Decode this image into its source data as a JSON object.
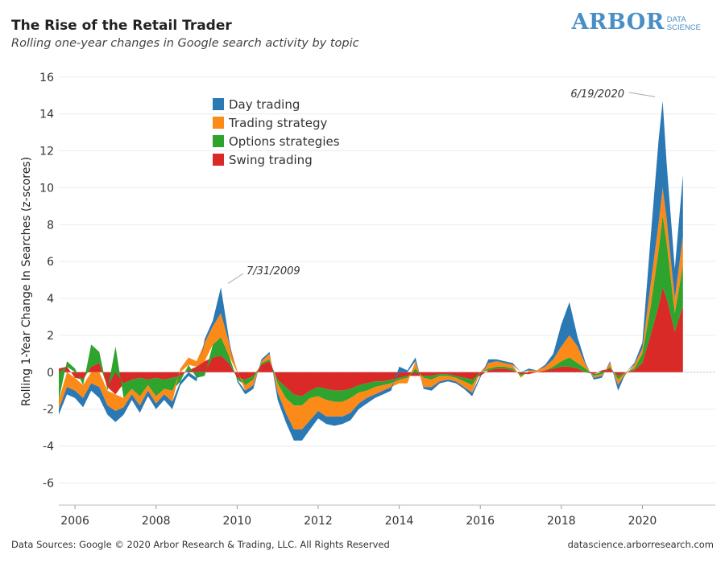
{
  "header": {
    "title": "The Rise of the Retail Trader",
    "subtitle": "Rolling one-year changes in Google search activity by topic",
    "logo_word": "ARBOR",
    "logo_sub_1": "DATA",
    "logo_sub_2": "SCIENCE"
  },
  "footer": {
    "sources": "Data Sources: Google © 2020 Arbor Research & Trading, LLC. All Rights Reserved",
    "website": "datascience.arborresearch.com"
  },
  "colors": {
    "day_trading": "#2a78b4",
    "trading_strategy": "#fb8a18",
    "options_strategies": "#2ea32e",
    "swing_trading": "#d92a27"
  },
  "chart_data": {
    "type": "area",
    "stacked": true,
    "xlabel": "",
    "ylabel": "Rolling 1-Year Change In Searches (z-scores)",
    "xlim": [
      2005.6,
      2021.8
    ],
    "ylim": [
      -7.2,
      16.6
    ],
    "yticks": [
      -6,
      -4,
      -2,
      0,
      2,
      4,
      6,
      8,
      10,
      12,
      14,
      16
    ],
    "xticks": [
      2006,
      2008,
      2010,
      2012,
      2014,
      2016,
      2018,
      2020
    ],
    "grid": true,
    "legend_position": "top-center",
    "annotations": [
      {
        "text": "7/31/2009",
        "x": 2009.58,
        "y": 4.6
      },
      {
        "text": "6/19/2020",
        "x": 2020.47,
        "y": 14.8
      }
    ],
    "x": [
      2005.6,
      2005.8,
      2006.0,
      2006.2,
      2006.4,
      2006.6,
      2006.8,
      2007.0,
      2007.2,
      2007.4,
      2007.6,
      2007.8,
      2008.0,
      2008.2,
      2008.4,
      2008.6,
      2008.8,
      2009.0,
      2009.2,
      2009.4,
      2009.6,
      2009.8,
      2010.0,
      2010.2,
      2010.4,
      2010.6,
      2010.8,
      2011.0,
      2011.2,
      2011.4,
      2011.6,
      2011.8,
      2012.0,
      2012.2,
      2012.4,
      2012.6,
      2012.8,
      2013.0,
      2013.2,
      2013.4,
      2013.6,
      2013.8,
      2014.0,
      2014.2,
      2014.4,
      2014.6,
      2014.8,
      2015.0,
      2015.2,
      2015.4,
      2015.6,
      2015.8,
      2016.0,
      2016.2,
      2016.4,
      2016.6,
      2016.8,
      2017.0,
      2017.2,
      2017.4,
      2017.6,
      2017.8,
      2018.0,
      2018.2,
      2018.4,
      2018.6,
      2018.8,
      2019.0,
      2019.2,
      2019.4,
      2019.6,
      2019.8,
      2020.0,
      2020.2,
      2020.4,
      2020.5,
      2020.6,
      2020.8,
      2021.0
    ],
    "series": [
      {
        "name": "Swing trading",
        "values": [
          0.2,
          0.3,
          -0.3,
          -0.4,
          0.3,
          0.5,
          -0.8,
          -1.2,
          -0.6,
          -0.4,
          -0.3,
          -0.4,
          -0.3,
          -0.4,
          -0.3,
          -0.2,
          0.1,
          0.3,
          0.6,
          0.8,
          0.9,
          0.5,
          -0.3,
          -0.4,
          -0.2,
          0.4,
          0.6,
          -0.4,
          -0.8,
          -1.2,
          -1.3,
          -1.0,
          -0.8,
          -0.9,
          -1.0,
          -1.0,
          -0.9,
          -0.7,
          -0.6,
          -0.5,
          -0.5,
          -0.4,
          -0.3,
          -0.2,
          -0.2,
          -0.2,
          -0.2,
          -0.1,
          -0.1,
          -0.2,
          -0.3,
          -0.4,
          -0.2,
          0.1,
          0.2,
          0.2,
          0.1,
          -0.1,
          -0.1,
          0.0,
          0.1,
          0.2,
          0.3,
          0.3,
          0.2,
          0.0,
          -0.1,
          0.1,
          0.2,
          -0.2,
          0.0,
          0.1,
          0.5,
          2.0,
          3.6,
          4.6,
          4.0,
          2.2,
          3.6
        ]
      },
      {
        "name": "Options strategies",
        "values": [
          -1.5,
          0.3,
          0.2,
          -0.3,
          1.2,
          0.6,
          -0.2,
          1.4,
          -0.8,
          -0.5,
          -1.0,
          -0.3,
          -1.0,
          -0.5,
          -0.7,
          -0.3,
          0.3,
          -0.3,
          -0.2,
          0.7,
          1.0,
          0.4,
          -0.1,
          -0.3,
          -0.2,
          0.1,
          0.1,
          -0.2,
          -0.6,
          -0.6,
          -0.5,
          -0.4,
          -0.5,
          -0.6,
          -0.6,
          -0.6,
          -0.5,
          -0.4,
          -0.4,
          -0.3,
          -0.2,
          -0.2,
          -0.1,
          -0.1,
          0.2,
          -0.1,
          -0.2,
          -0.1,
          -0.1,
          -0.1,
          -0.2,
          -0.3,
          0.0,
          0.1,
          0.1,
          0.1,
          0.1,
          -0.1,
          0.0,
          0.0,
          0.0,
          0.1,
          0.3,
          0.5,
          0.3,
          0.2,
          -0.1,
          -0.1,
          0.1,
          -0.2,
          0.0,
          0.1,
          0.5,
          1.5,
          3.0,
          3.9,
          3.0,
          1.0,
          2.2
        ]
      },
      {
        "name": "Trading strategy",
        "values": [
          -0.5,
          -0.8,
          -0.7,
          -0.7,
          -0.6,
          -0.8,
          -0.8,
          -0.9,
          -0.5,
          -0.3,
          -0.5,
          -0.3,
          -0.4,
          -0.3,
          -0.6,
          0.2,
          0.4,
          0.3,
          1.0,
          1.0,
          1.3,
          0.7,
          0.1,
          -0.3,
          -0.3,
          0.1,
          0.3,
          -0.5,
          -0.8,
          -1.3,
          -1.3,
          -1.2,
          -0.8,
          -0.9,
          -0.8,
          -0.8,
          -0.8,
          -0.6,
          -0.4,
          -0.4,
          -0.3,
          -0.2,
          -0.2,
          -0.3,
          0.4,
          -0.5,
          -0.4,
          -0.3,
          -0.2,
          -0.2,
          -0.3,
          -0.4,
          0.0,
          0.3,
          0.3,
          0.2,
          0.2,
          -0.1,
          0.1,
          0.1,
          0.2,
          0.4,
          0.8,
          1.2,
          0.9,
          0.2,
          -0.1,
          -0.1,
          0.2,
          -0.3,
          -0.1,
          0.2,
          0.3,
          1.2,
          1.5,
          1.5,
          1.3,
          0.8,
          1.6
        ]
      },
      {
        "name": "Day trading",
        "values": [
          -0.3,
          -0.4,
          -0.4,
          -0.5,
          -0.4,
          -0.6,
          -0.5,
          -0.6,
          -0.4,
          -0.3,
          -0.4,
          -0.3,
          -0.3,
          -0.3,
          -0.4,
          -0.2,
          -0.2,
          -0.2,
          0.2,
          0.3,
          1.4,
          0.2,
          -0.1,
          -0.2,
          -0.2,
          0.1,
          0.1,
          -0.4,
          -0.5,
          -0.6,
          -0.6,
          -0.5,
          -0.4,
          -0.4,
          -0.5,
          -0.4,
          -0.4,
          -0.3,
          -0.3,
          -0.2,
          -0.2,
          -0.2,
          0.3,
          0.1,
          0.2,
          -0.1,
          -0.2,
          -0.1,
          -0.1,
          -0.1,
          -0.1,
          -0.2,
          -0.1,
          0.2,
          0.1,
          0.1,
          0.1,
          0.0,
          0.1,
          0.0,
          0.1,
          0.3,
          1.2,
          1.8,
          0.5,
          0.1,
          -0.1,
          -0.1,
          0.1,
          -0.3,
          0.0,
          0.1,
          0.3,
          2.5,
          4.5,
          4.7,
          3.0,
          1.6,
          3.3
        ]
      }
    ]
  }
}
